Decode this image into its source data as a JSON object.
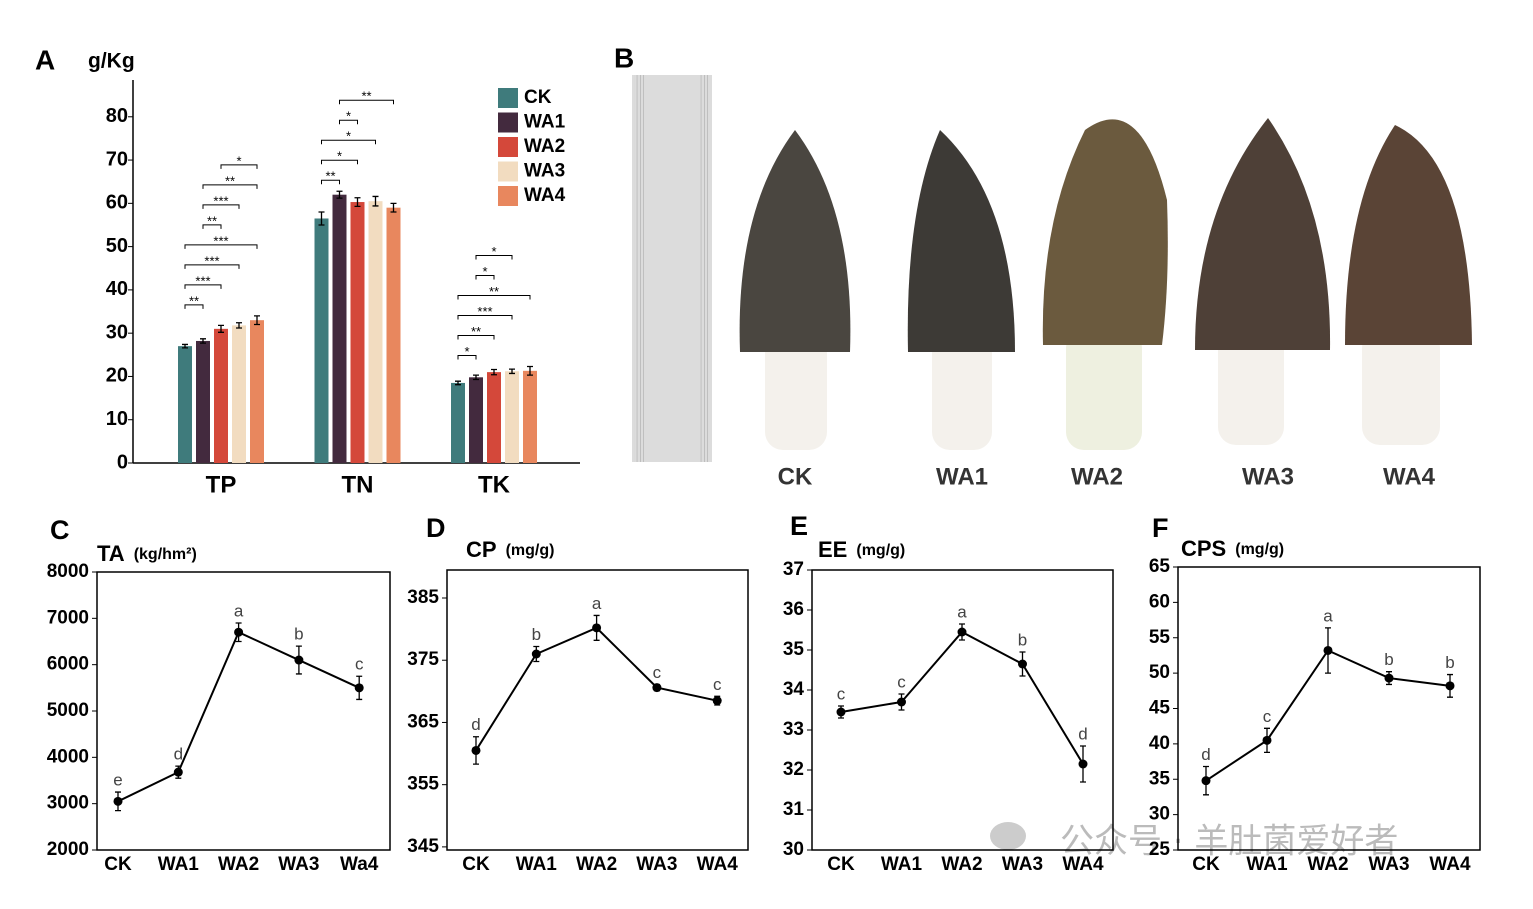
{
  "chart_data": [
    {
      "type": "bar",
      "panel": "A",
      "y_label": "g/Kg",
      "categories": [
        "TP",
        "TN",
        "TK"
      ],
      "series": [
        {
          "name": "CK",
          "color": "#3f7b7c",
          "values": [
            27,
            56.5,
            18.5
          ],
          "errors": [
            0.4,
            1.5,
            0.4
          ]
        },
        {
          "name": "WA1",
          "color": "#432a3e",
          "values": [
            28.2,
            62,
            19.8
          ],
          "errors": [
            0.5,
            0.8,
            0.5
          ]
        },
        {
          "name": "WA2",
          "color": "#d4483a",
          "values": [
            31,
            60.3,
            21
          ],
          "errors": [
            0.8,
            1,
            0.6
          ]
        },
        {
          "name": "WA3",
          "color": "#f2dcc0",
          "values": [
            31.8,
            60.5,
            21.2
          ],
          "errors": [
            0.6,
            1.1,
            0.5
          ]
        },
        {
          "name": "WA4",
          "color": "#e8875e",
          "values": [
            33,
            59,
            21.3
          ],
          "errors": [
            1,
            1,
            1
          ]
        }
      ],
      "ylim": [
        0,
        88.5
      ],
      "yticks": [
        0,
        10,
        20,
        30,
        40,
        50,
        60,
        70,
        80
      ],
      "significance": [
        {
          "category": 0,
          "pair": [
            0,
            1
          ],
          "label": "**"
        },
        {
          "category": 0,
          "pair": [
            0,
            2
          ],
          "label": "***"
        },
        {
          "category": 0,
          "pair": [
            0,
            3
          ],
          "label": "***"
        },
        {
          "category": 0,
          "pair": [
            0,
            4
          ],
          "label": "***"
        },
        {
          "category": 0,
          "pair": [
            1,
            2
          ],
          "label": "**"
        },
        {
          "category": 0,
          "pair": [
            1,
            3
          ],
          "label": "***"
        },
        {
          "category": 0,
          "pair": [
            1,
            4
          ],
          "label": "**"
        },
        {
          "category": 0,
          "pair": [
            2,
            4
          ],
          "label": "*"
        },
        {
          "category": 1,
          "pair": [
            0,
            1
          ],
          "label": "**"
        },
        {
          "category": 1,
          "pair": [
            0,
            2
          ],
          "label": "*"
        },
        {
          "category": 1,
          "pair": [
            0,
            3
          ],
          "label": "*"
        },
        {
          "category": 1,
          "pair": [
            1,
            2
          ],
          "label": "*"
        },
        {
          "category": 1,
          "pair": [
            1,
            4
          ],
          "label": "**"
        },
        {
          "category": 2,
          "pair": [
            0,
            1
          ],
          "label": "*"
        },
        {
          "category": 2,
          "pair": [
            0,
            2
          ],
          "label": "**"
        },
        {
          "category": 2,
          "pair": [
            0,
            3
          ],
          "label": "***"
        },
        {
          "category": 2,
          "pair": [
            0,
            4
          ],
          "label": "**"
        },
        {
          "category": 2,
          "pair": [
            1,
            2
          ],
          "label": "*"
        },
        {
          "category": 2,
          "pair": [
            1,
            3
          ],
          "label": "*"
        }
      ]
    },
    {
      "type": "line",
      "panel": "C",
      "title": "TA",
      "unit": "(kg/hm²)",
      "categories": [
        "CK",
        "WA1",
        "WA2",
        "WA3",
        "Wa4"
      ],
      "values": [
        3050,
        3680,
        6700,
        6100,
        5500
      ],
      "errors": [
        200,
        130,
        200,
        300,
        250
      ],
      "letters": [
        "e",
        "d",
        "a",
        "b",
        "c"
      ],
      "ylim": [
        2000,
        8000
      ],
      "yticks": [
        2000,
        3000,
        4000,
        5000,
        6000,
        7000,
        8000
      ],
      "color": "#000000"
    },
    {
      "type": "line",
      "panel": "D",
      "title": "CP",
      "unit": "(mg/g)",
      "categories": [
        "CK",
        "WA1",
        "WA2",
        "WA3",
        "WA4"
      ],
      "values": [
        360.5,
        376,
        380.2,
        370.6,
        368.5
      ],
      "errors": [
        2.2,
        1.2,
        2,
        0.5,
        0.7
      ],
      "letters": [
        "d",
        "b",
        "a",
        "c",
        "c"
      ],
      "ylim": [
        344.5,
        389.5
      ],
      "yticks": [
        345,
        355,
        365,
        375,
        385
      ],
      "color": "#000000"
    },
    {
      "type": "line",
      "panel": "E",
      "title": "EE",
      "unit": "(mg/g)",
      "categories": [
        "CK",
        "WA1",
        "WA2",
        "WA3",
        "WA4"
      ],
      "values": [
        33.45,
        33.7,
        35.45,
        34.65,
        32.15
      ],
      "errors": [
        0.15,
        0.2,
        0.2,
        0.3,
        0.45
      ],
      "letters": [
        "c",
        "c",
        "a",
        "b",
        "d"
      ],
      "ylim": [
        30,
        37
      ],
      "yticks": [
        30,
        31,
        32,
        33,
        34,
        35,
        36,
        37
      ],
      "color": "#000000"
    },
    {
      "type": "line",
      "panel": "F",
      "title": "CPS",
      "unit": "(mg/g)",
      "categories": [
        "CK",
        "WA1",
        "WA2",
        "WA3",
        "WA4"
      ],
      "values": [
        34.8,
        40.5,
        53.2,
        49.3,
        48.2
      ],
      "errors": [
        2,
        1.7,
        3.2,
        0.9,
        1.6
      ],
      "letters": [
        "d",
        "c",
        "a",
        "b",
        "b"
      ],
      "ylim": [
        25,
        65
      ],
      "yticks": [
        25,
        30,
        35,
        40,
        45,
        50,
        55,
        60,
        65
      ],
      "color": "#000000"
    }
  ],
  "photo_panel": {
    "panel": "B",
    "labels": [
      "CK",
      "WA1",
      "WA2",
      "WA3",
      "WA4"
    ]
  },
  "watermark": "公众号 · 羊肚菌爱好者"
}
